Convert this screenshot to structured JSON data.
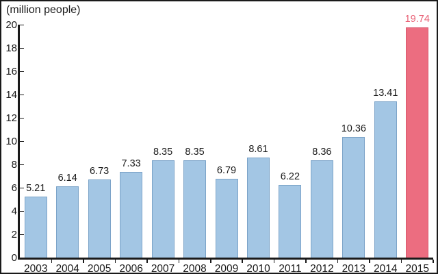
{
  "chart_data": {
    "type": "bar",
    "title": "(million people)",
    "categories": [
      "2003",
      "2004",
      "2005",
      "2006",
      "2007",
      "2008",
      "2009",
      "2010",
      "2011",
      "2012",
      "2013",
      "2014",
      "2015"
    ],
    "values": [
      5.21,
      6.14,
      6.73,
      7.33,
      8.35,
      8.35,
      6.79,
      8.61,
      6.22,
      8.36,
      10.36,
      13.41,
      19.74
    ],
    "value_labels": [
      "5.21",
      "6.14",
      "6.73",
      "7.33",
      "8.35",
      "8.35",
      "6.79",
      "8.61",
      "6.22",
      "8.36",
      "10.36",
      "13.41",
      "19.74"
    ],
    "xlabel": "",
    "ylabel": "(million people)",
    "ylim": [
      0,
      20
    ],
    "ytick_step": 2,
    "grid": false,
    "legend": null,
    "colors": {
      "bar_fill": "#a3c6e4",
      "bar_stroke": "#7ba3c8",
      "highlight_fill": "#ec6d80",
      "highlight_stroke": "#d9566c",
      "highlight_label": "#e85d72",
      "axis": "#1a1a1a",
      "text": "#1a1a1a",
      "background": "#ffffff"
    },
    "highlight_index": 12
  }
}
